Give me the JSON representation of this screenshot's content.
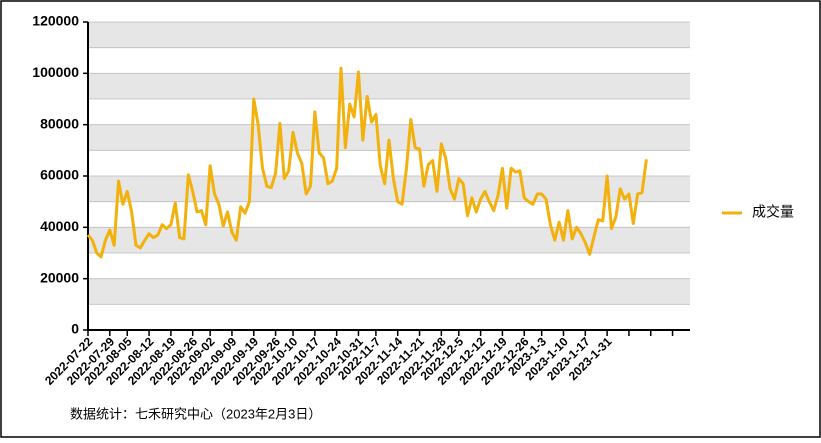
{
  "chart_data": {
    "type": "line",
    "categories": [
      "2022-07-22",
      null,
      null,
      null,
      null,
      "2022-07-29",
      null,
      null,
      null,
      "2022-08-05",
      null,
      null,
      null,
      null,
      "2022-08-12",
      null,
      null,
      null,
      null,
      "2022-08-19",
      null,
      null,
      null,
      null,
      "2022-08-26",
      null,
      null,
      null,
      "2022-09-02",
      null,
      null,
      null,
      null,
      "2022-09-09",
      null,
      null,
      null,
      null,
      "2022-09-19",
      null,
      null,
      null,
      null,
      "2022-09-26",
      null,
      null,
      null,
      "2022-10-10",
      null,
      null,
      null,
      null,
      "2022-10-17",
      null,
      null,
      null,
      null,
      "2022-10-24",
      null,
      null,
      null,
      null,
      "2022-10-31",
      null,
      null,
      null,
      "2022-11-7",
      null,
      null,
      null,
      null,
      "2022-11-14",
      null,
      null,
      null,
      null,
      "2022-11-21",
      null,
      null,
      null,
      null,
      "2022-11-28",
      null,
      null,
      null,
      "2022-12-5",
      null,
      null,
      null,
      null,
      "2022-12-12",
      null,
      null,
      null,
      null,
      "2022-12-19",
      null,
      null,
      null,
      null,
      "2022-12-26",
      null,
      null,
      null,
      "2023-1-3",
      null,
      null,
      null,
      null,
      "2023-1-10",
      null,
      null,
      null,
      null,
      "2023-1-17",
      null,
      null,
      null,
      null,
      "2023-1-31",
      null,
      null,
      null,
      null,
      null,
      null,
      null,
      null,
      null,
      null,
      null,
      null,
      null,
      null,
      null,
      null,
      null,
      null,
      null
    ],
    "series": [
      {
        "name": "成交量",
        "color": "#f2b10c",
        "values": [
          37000,
          35000,
          30000,
          28500,
          35000,
          39000,
          33000,
          58000,
          49000,
          54000,
          46000,
          33000,
          32000,
          35000,
          37500,
          36000,
          37000,
          41000,
          39500,
          41000,
          49500,
          36000,
          35500,
          60500,
          54000,
          46000,
          46500,
          41000,
          64000,
          53000,
          49000,
          40500,
          46000,
          38000,
          35000,
          48000,
          45500,
          50000,
          90000,
          80000,
          63000,
          56000,
          55500,
          61000,
          80500,
          59000,
          62000,
          77000,
          69000,
          65000,
          53000,
          56000,
          85000,
          69000,
          67000,
          57000,
          58000,
          63000,
          102000,
          71000,
          88000,
          83000,
          100500,
          74000,
          91000,
          81000,
          84000,
          64000,
          57000,
          74000,
          59000,
          50000,
          49000,
          63000,
          82000,
          71000,
          70500,
          56000,
          64500,
          66000,
          54000,
          72500,
          67000,
          55000,
          51000,
          59000,
          57000,
          44500,
          51500,
          46000,
          51000,
          54000,
          50000,
          46500,
          52500,
          63000,
          47500,
          63000,
          61500,
          62000,
          51500,
          50000,
          49000,
          53000,
          53000,
          51000,
          41000,
          35000,
          42000,
          35000,
          46500,
          35500,
          40000,
          37500,
          34000,
          29500,
          36500,
          43000,
          42500,
          60000,
          39500,
          44000,
          55000,
          51000,
          53000,
          41500,
          53000,
          53500,
          66500,
          null,
          null,
          null,
          null,
          null,
          null,
          null,
          null,
          null,
          null
        ]
      }
    ],
    "ylim": [
      0,
      120000
    ],
    "yticks": [
      0,
      20000,
      40000,
      60000,
      80000,
      100000,
      120000
    ],
    "footnote": "数据统计：七禾研究中心（2023年2月3日）"
  }
}
